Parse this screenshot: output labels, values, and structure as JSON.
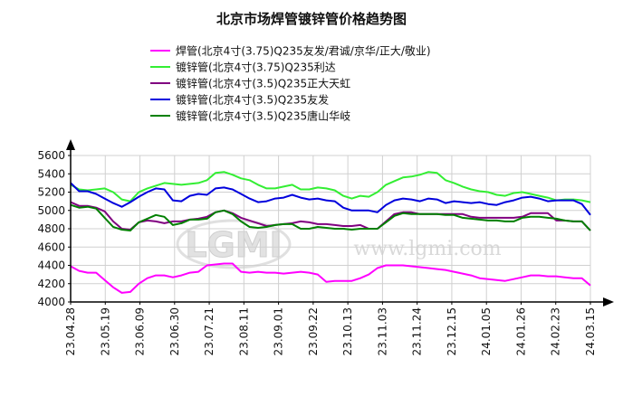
{
  "chart_data": {
    "type": "line",
    "title": "北京市场焊管镀锌管价格趋势图",
    "watermark": {
      "logo": "LGMI",
      "url": "www.lgmi.com"
    },
    "x_tick_labels": [
      "23.04.28",
      "23.05.19",
      "23.06.09",
      "23.06.30",
      "23.07.21",
      "23.08.11",
      "23.09.01",
      "23.09.22",
      "23.10.13",
      "23.11.03",
      "23.11.24",
      "23.12.15",
      "24.01.05",
      "24.01.26",
      "24.02.23",
      "24.03.15"
    ],
    "ylim": [
      4000,
      5600
    ],
    "y_ticks": [
      4000,
      4200,
      4400,
      4600,
      4800,
      5000,
      5200,
      5400,
      5600
    ],
    "grid": true,
    "legend_placement": "top",
    "series": [
      {
        "name": "焊管(北京4寸(3.75)Q235友发/君诚/京华/正大/敬业)",
        "color": "#ff00ff",
        "values": [
          4390,
          4340,
          4320,
          4320,
          4240,
          4160,
          4100,
          4110,
          4200,
          4260,
          4290,
          4290,
          4270,
          4290,
          4320,
          4330,
          4400,
          4410,
          4420,
          4420,
          4330,
          4320,
          4330,
          4320,
          4320,
          4310,
          4320,
          4330,
          4320,
          4300,
          4220,
          4230,
          4230,
          4230,
          4260,
          4300,
          4370,
          4400,
          4400,
          4400,
          4390,
          4380,
          4370,
          4360,
          4350,
          4330,
          4310,
          4290,
          4260,
          4250,
          4240,
          4230,
          4250,
          4270,
          4290,
          4290,
          4280,
          4280,
          4270,
          4260,
          4260,
          4180
        ]
      },
      {
        "name": "镀锌管(北京4寸(3.75)Q235利达",
        "color": "#33ee33",
        "values": [
          5280,
          5230,
          5220,
          5230,
          5240,
          5200,
          5120,
          5100,
          5200,
          5240,
          5270,
          5300,
          5290,
          5280,
          5290,
          5300,
          5330,
          5410,
          5420,
          5390,
          5350,
          5330,
          5280,
          5240,
          5240,
          5260,
          5280,
          5230,
          5230,
          5250,
          5240,
          5220,
          5160,
          5130,
          5160,
          5150,
          5200,
          5280,
          5320,
          5360,
          5370,
          5390,
          5420,
          5410,
          5330,
          5300,
          5260,
          5230,
          5210,
          5200,
          5170,
          5160,
          5190,
          5200,
          5180,
          5160,
          5140,
          5110,
          5120,
          5120,
          5110,
          5090
        ]
      },
      {
        "name": "镀锌管(北京4寸(3.5)Q235正大天虹",
        "color": "#800080",
        "values": [
          5090,
          5050,
          5050,
          5030,
          4990,
          4880,
          4800,
          4790,
          4870,
          4890,
          4880,
          4860,
          4880,
          4880,
          4900,
          4910,
          4930,
          4980,
          5000,
          4970,
          4920,
          4890,
          4860,
          4830,
          4840,
          4850,
          4860,
          4880,
          4870,
          4850,
          4850,
          4840,
          4830,
          4830,
          4840,
          4800,
          4800,
          4880,
          4960,
          4980,
          4980,
          4960,
          4960,
          4960,
          4960,
          4960,
          4960,
          4930,
          4920,
          4920,
          4920,
          4920,
          4920,
          4930,
          4970,
          4970,
          4970,
          4890,
          4890,
          4880,
          4880,
          4780
        ]
      },
      {
        "name": "镀锌管(北京4寸(3.5)Q235友发",
        "color": "#0000dd",
        "values": [
          5300,
          5210,
          5210,
          5180,
          5130,
          5080,
          5040,
          5090,
          5150,
          5200,
          5240,
          5230,
          5110,
          5100,
          5160,
          5180,
          5170,
          5240,
          5250,
          5230,
          5180,
          5130,
          5090,
          5100,
          5130,
          5140,
          5170,
          5140,
          5120,
          5130,
          5110,
          5100,
          5030,
          5000,
          5000,
          5000,
          4980,
          5060,
          5110,
          5130,
          5120,
          5100,
          5130,
          5120,
          5080,
          5100,
          5090,
          5080,
          5090,
          5070,
          5060,
          5090,
          5110,
          5140,
          5150,
          5130,
          5100,
          5110,
          5110,
          5110,
          5070,
          4950
        ]
      },
      {
        "name": "镀锌管(北京4寸(3.5)Q235唐山华岐",
        "color": "#008000",
        "values": [
          5060,
          5030,
          5040,
          5020,
          4920,
          4820,
          4790,
          4780,
          4870,
          4910,
          4950,
          4930,
          4840,
          4860,
          4900,
          4900,
          4910,
          4980,
          5000,
          4960,
          4880,
          4820,
          4810,
          4820,
          4840,
          4850,
          4850,
          4800,
          4800,
          4820,
          4810,
          4800,
          4800,
          4790,
          4800,
          4800,
          4800,
          4870,
          4940,
          4970,
          4960,
          4960,
          4960,
          4960,
          4950,
          4950,
          4920,
          4910,
          4900,
          4890,
          4890,
          4880,
          4880,
          4920,
          4930,
          4930,
          4920,
          4910,
          4890,
          4880,
          4880,
          4780
        ]
      }
    ]
  }
}
